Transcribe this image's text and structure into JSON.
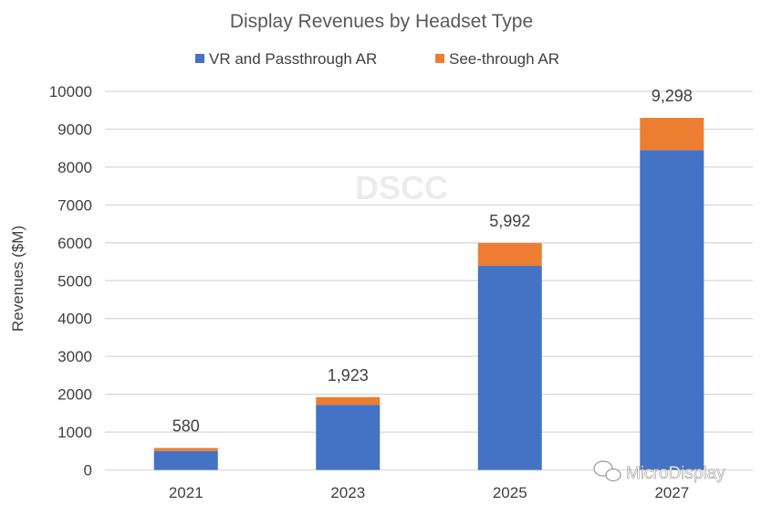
{
  "chart_data": {
    "type": "bar",
    "stacked": true,
    "title": "Display Revenues by Headset Type",
    "ylabel": "Revenues ($M)",
    "xlabel": "",
    "categories": [
      "2021",
      "2023",
      "2025",
      "2027"
    ],
    "series": [
      {
        "name": "VR and Passthrough AR",
        "color": "#4472C4",
        "values": [
          500,
          1720,
          5390,
          8450
        ]
      },
      {
        "name": "See-through AR",
        "color": "#ED7D31",
        "values": [
          80,
          203,
          602,
          848
        ]
      }
    ],
    "totals": [
      580,
      1923,
      5992,
      9298
    ],
    "total_labels": [
      "580",
      "1,923",
      "5,992",
      "9,298"
    ],
    "ylim": [
      0,
      10000
    ],
    "yticks": [
      0,
      1000,
      2000,
      3000,
      4000,
      5000,
      6000,
      7000,
      8000,
      9000,
      10000
    ],
    "grid": true,
    "legend_position": "top",
    "watermarks": [
      "DSCC",
      "MicroDisplay"
    ]
  }
}
